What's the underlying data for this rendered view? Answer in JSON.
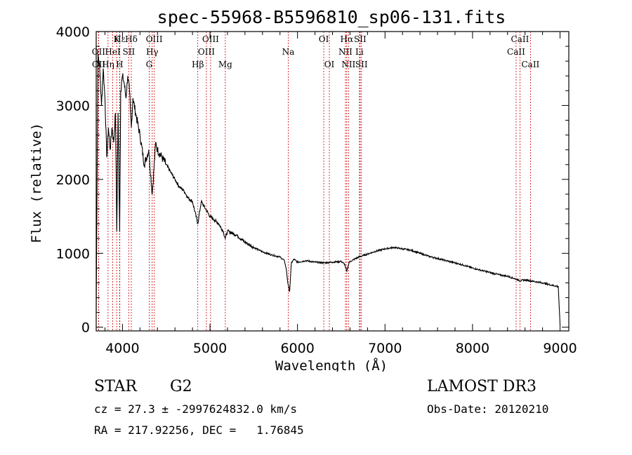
{
  "chart_data": {
    "type": "line",
    "title": "spec-55968-B5596810_sp06-131.fits",
    "xlabel": "Wavelength (Å)",
    "ylabel": "Flux (relative)",
    "xlim": [
      3700,
      9100
    ],
    "ylim": [
      -50,
      4000
    ],
    "xticks": [
      4000,
      5000,
      6000,
      7000,
      8000,
      9000
    ],
    "yticks": [
      0,
      1000,
      2000,
      3000,
      4000
    ],
    "series": [
      {
        "name": "flux",
        "x": [
          3700,
          3720,
          3740,
          3760,
          3780,
          3800,
          3820,
          3840,
          3860,
          3880,
          3900,
          3920,
          3935,
          3950,
          3968,
          3980,
          4000,
          4020,
          4040,
          4060,
          4080,
          4101,
          4120,
          4150,
          4200,
          4250,
          4300,
          4340,
          4380,
          4400,
          4450,
          4500,
          4550,
          4600,
          4650,
          4700,
          4750,
          4800,
          4861,
          4900,
          4950,
          5000,
          5050,
          5100,
          5150,
          5175,
          5200,
          5300,
          5400,
          5500,
          5600,
          5700,
          5800,
          5850,
          5870,
          5890,
          5910,
          5930,
          5960,
          6000,
          6100,
          6200,
          6300,
          6400,
          6500,
          6540,
          6563,
          6590,
          6650,
          6700,
          6800,
          6900,
          7000,
          7100,
          7200,
          7300,
          7400,
          7500,
          7600,
          7700,
          7800,
          7900,
          8000,
          8100,
          8200,
          8300,
          8400,
          8500,
          8542,
          8600,
          8700,
          8800,
          8900,
          8980,
          9000
        ],
        "values": [
          200,
          3700,
          3500,
          3000,
          3500,
          3100,
          2300,
          2700,
          2400,
          2700,
          2500,
          2900,
          1300,
          2900,
          1300,
          3200,
          3400,
          3300,
          3100,
          3400,
          3200,
          2700,
          3100,
          2900,
          2600,
          2200,
          2400,
          1800,
          2500,
          2400,
          2300,
          2200,
          2100,
          2000,
          1900,
          1850,
          1750,
          1700,
          1400,
          1700,
          1600,
          1500,
          1450,
          1400,
          1300,
          1200,
          1300,
          1250,
          1150,
          1080,
          1020,
          980,
          950,
          900,
          800,
          600,
          480,
          870,
          920,
          880,
          900,
          880,
          870,
          880,
          890,
          850,
          750,
          880,
          920,
          950,
          990,
          1030,
          1060,
          1080,
          1060,
          1040,
          1000,
          960,
          930,
          900,
          870,
          840,
          800,
          770,
          740,
          710,
          690,
          650,
          630,
          640,
          620,
          600,
          570,
          550,
          40
        ]
      }
    ],
    "line_markers": [
      {
        "label": "Hε",
        "wavelength": 3970,
        "row": 0
      },
      {
        "label": "OII",
        "wavelength": 3727,
        "row": 1
      },
      {
        "label": "OII",
        "wavelength": 3729,
        "row": 2
      },
      {
        "label": "Hδ",
        "wavelength": 4101,
        "row": 0
      },
      {
        "label": "K",
        "wavelength": 3934,
        "row": 0
      },
      {
        "label": "HeI",
        "wavelength": 3889,
        "row": 1
      },
      {
        "label": "SII",
        "wavelength": 4072,
        "row": 1
      },
      {
        "label": "Hη",
        "wavelength": 3835,
        "row": 2
      },
      {
        "label": "H",
        "wavelength": 3968,
        "row": 2
      },
      {
        "label": "OIII",
        "wavelength": 4363,
        "row": 0
      },
      {
        "label": "Hγ",
        "wavelength": 4340,
        "row": 1
      },
      {
        "label": "G",
        "wavelength": 4305,
        "row": 2
      },
      {
        "label": "OIII",
        "wavelength": 5007,
        "row": 0
      },
      {
        "label": "OIII",
        "wavelength": 4959,
        "row": 1
      },
      {
        "label": "Hβ",
        "wavelength": 4861,
        "row": 2
      },
      {
        "label": "Mg",
        "wavelength": 5175,
        "row": 2
      },
      {
        "label": "Na",
        "wavelength": 5894,
        "row": 1
      },
      {
        "label": "OI",
        "wavelength": 6300,
        "row": 0
      },
      {
        "label": "OI",
        "wavelength": 6364,
        "row": 2
      },
      {
        "label": "Hα",
        "wavelength": 6563,
        "row": 0
      },
      {
        "label": "SII",
        "wavelength": 6716,
        "row": 0
      },
      {
        "label": "NII",
        "wavelength": 6548,
        "row": 1
      },
      {
        "label": "Li",
        "wavelength": 6708,
        "row": 1
      },
      {
        "label": "NII",
        "wavelength": 6583,
        "row": 2
      },
      {
        "label": "SII",
        "wavelength": 6731,
        "row": 2
      },
      {
        "label": "CaII",
        "wavelength": 8542,
        "row": 0
      },
      {
        "label": "CaII",
        "wavelength": 8498,
        "row": 1
      },
      {
        "label": "CaII",
        "wavelength": 8662,
        "row": 2
      }
    ]
  },
  "info": {
    "object_class": "STAR",
    "subclass": "G2",
    "survey": "LAMOST DR3",
    "cz": "cz = 27.3 ± -2997624832.0 km/s",
    "obs_date": "Obs-Date: 20120210",
    "radec": "RA = 217.92256, DEC =   1.76845"
  },
  "colors": {
    "axes": "#000000",
    "spectrum": "#000000",
    "markers": "#cc0000"
  }
}
